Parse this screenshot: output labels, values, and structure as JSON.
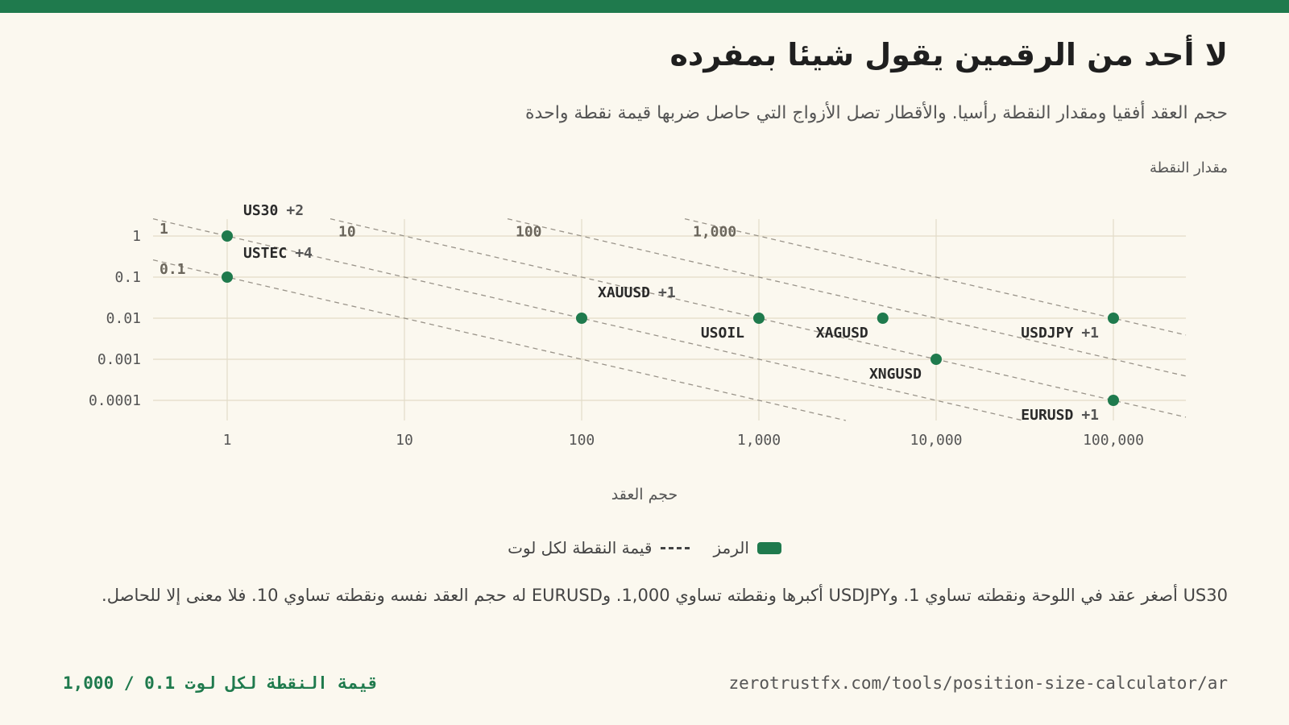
{
  "header": {
    "title": "لا أحد من الرقمين يقول شيئا بمفرده",
    "subtitle": "حجم العقد أفقيا ومقدار النقطة رأسيا. والأقطار تصل الأزواج التي حاصل ضربها قيمة نقطة واحدة"
  },
  "colors": {
    "accent": "#1f7a4d",
    "background": "#fbf8ef",
    "grid": "#e3dcc8",
    "diagonal": "#9a948a"
  },
  "chart_data": {
    "type": "scatter",
    "xlabel": "حجم العقد",
    "ylabel": "مقدار النقطة",
    "x_scale": "log",
    "y_scale": "log",
    "xlim": [
      0.4,
      250000
    ],
    "ylim": [
      4e-05,
      3
    ],
    "x_ticks": [
      1,
      10,
      100,
      1000,
      10000,
      100000
    ],
    "x_tick_labels": [
      "1",
      "10",
      "100",
      "1,000",
      "10,000",
      "100,000"
    ],
    "y_ticks": [
      1,
      0.1,
      0.01,
      0.001,
      0.0001
    ],
    "y_tick_labels": [
      "1",
      "0.1",
      "0.01",
      "0.001",
      "0.0001"
    ],
    "grid": true,
    "points": [
      {
        "symbol": "US30",
        "badge": "+2",
        "x": 1,
        "y": 1
      },
      {
        "symbol": "USTEC",
        "badge": "+4",
        "x": 1,
        "y": 0.1
      },
      {
        "symbol": "XAUUSD",
        "badge": "+1",
        "x": 100,
        "y": 0.01
      },
      {
        "symbol": "USOIL",
        "badge": "",
        "x": 1000,
        "y": 0.01
      },
      {
        "symbol": "XAGUSD",
        "badge": "",
        "x": 5000,
        "y": 0.01
      },
      {
        "symbol": "XNGUSD",
        "badge": "",
        "x": 10000,
        "y": 0.001
      },
      {
        "symbol": "USDJPY",
        "badge": "+1",
        "x": 100000,
        "y": 0.01
      },
      {
        "symbol": "EURUSD",
        "badge": "+1",
        "x": 100000,
        "y": 0.0001
      }
    ],
    "diagonals": [
      {
        "value": 0.1,
        "label": "0.1"
      },
      {
        "value": 1,
        "label": "1"
      },
      {
        "value": 10,
        "label": "10"
      },
      {
        "value": 100,
        "label": "100"
      },
      {
        "value": 1000,
        "label": "1,000"
      }
    ],
    "legend": {
      "position": "bottom",
      "marker_label": "الرمز",
      "line_label": "قيمة النقطة لكل لوت"
    }
  },
  "note": "US30 أصغر عقد في اللوحة ونقطته تساوي 1. وUSDJPY أكبرها ونقطته تساوي 1,000. وEURUSD له حجم العقد نفسه ونقطته تساوي 10. فلا معنى إلا للحاصل.",
  "footer": {
    "url": "zerotrustfx.com/tools/position-size-calculator/ar",
    "brand": "قيمة النقطة لكل لوت 0.1 / 1,000"
  }
}
